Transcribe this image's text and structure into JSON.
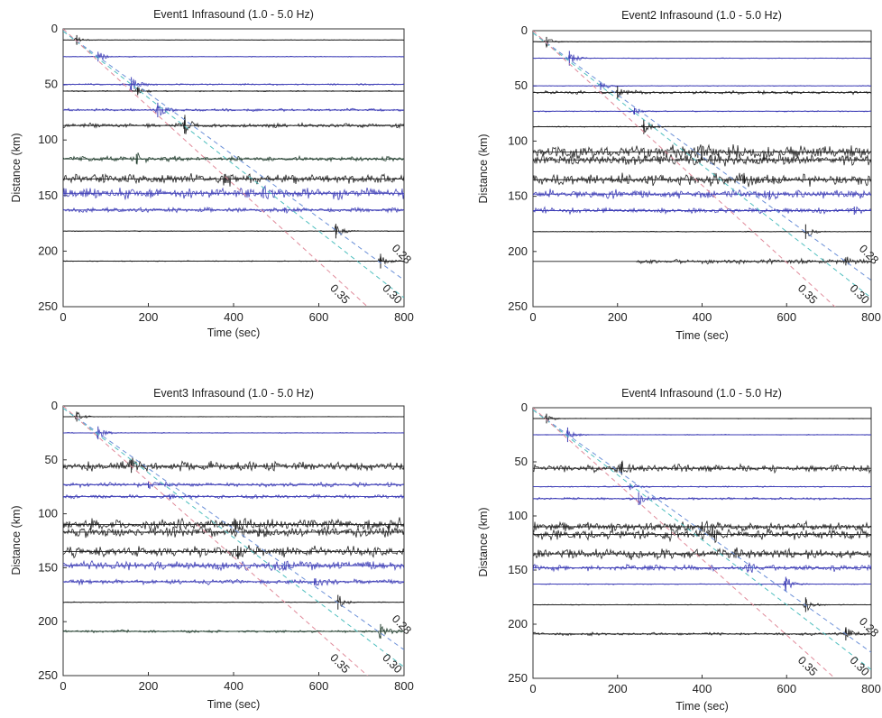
{
  "chart_data": [
    {
      "type": "line",
      "title": "Event1  Infrasound (1.0 - 5.0 Hz)",
      "xlabel": "Time (sec)",
      "ylabel": "Distance (km)",
      "xlim": [
        0,
        800
      ],
      "ylim": [
        0,
        250
      ],
      "y_inverted": true,
      "xticks": [
        0,
        200,
        400,
        600,
        800
      ],
      "yticks": [
        0,
        50,
        100,
        150,
        200,
        250
      ],
      "velocity_lines": [
        {
          "label": "0.28",
          "color": "#6a8fd8"
        },
        {
          "label": "0.30",
          "color": "#4fbfbf"
        },
        {
          "label": "0.35",
          "color": "#e08a9a"
        }
      ],
      "traces": [
        {
          "distance": 10,
          "color": "#1a1a1a",
          "noise": 0.2,
          "arrival": 32,
          "amp": 6
        },
        {
          "distance": 25,
          "color": "#3b3bb5",
          "noise": 0.3,
          "arrival": 82,
          "amp": 6
        },
        {
          "distance": 50,
          "color": "#3b3bb5",
          "noise": 0.6,
          "arrival": 160,
          "amp": 9
        },
        {
          "distance": 56,
          "color": "#1a1a1a",
          "noise": 0.4,
          "arrival": 175,
          "amp": 5
        },
        {
          "distance": 73,
          "color": "#3b3bb5",
          "noise": 1.0,
          "arrival": 222,
          "amp": 9
        },
        {
          "distance": 87,
          "color": "#1a1a1a",
          "noise": 1.6,
          "arrival": 285,
          "amp": 10
        },
        {
          "distance": 117,
          "color": "#1d3a2a",
          "noise": 1.8,
          "arrival": 172,
          "amp": 6
        },
        {
          "distance": 135,
          "color": "#1a1a1a",
          "noise": 3.6,
          "arrival": 380,
          "amp": 5
        },
        {
          "distance": 148,
          "color": "#3b3bb5",
          "noise": 3.8,
          "arrival": 470,
          "amp": 6
        },
        {
          "distance": 163,
          "color": "#3b3bb5",
          "noise": 1.6,
          "arrival": 520,
          "amp": 3
        },
        {
          "distance": 182,
          "color": "#1a1a1a",
          "noise": 0.3,
          "arrival": 640,
          "amp": 9
        },
        {
          "distance": 209,
          "color": "#1a1a1a",
          "noise": 0.3,
          "arrival": 745,
          "amp": 9
        }
      ]
    },
    {
      "type": "line",
      "title": "Event2  Infrasound (1.0 - 5.0 Hz)",
      "xlabel": "Time (sec)",
      "ylabel": "Distance (km)",
      "xlim": [
        0,
        800
      ],
      "ylim": [
        0,
        250
      ],
      "y_inverted": true,
      "xticks": [
        0,
        200,
        400,
        600,
        800
      ],
      "yticks": [
        0,
        50,
        100,
        150,
        200,
        250
      ],
      "velocity_lines": [
        {
          "label": "0.28",
          "color": "#6a8fd8"
        },
        {
          "label": "0.30",
          "color": "#4fbfbf"
        },
        {
          "label": "0.35",
          "color": "#e08a9a"
        }
      ],
      "traces": [
        {
          "distance": 10,
          "color": "#1a1a1a",
          "noise": 0.2,
          "arrival": 32,
          "amp": 6
        },
        {
          "distance": 25,
          "color": "#3b3bb5",
          "noise": 0.3,
          "arrival": 86,
          "amp": 9
        },
        {
          "distance": 50,
          "color": "#3b3bb5",
          "noise": 0.3,
          "arrival": 160,
          "amp": 5
        },
        {
          "distance": 56,
          "color": "#1a1a1a",
          "noise": 1.2,
          "arrival": 200,
          "amp": 8
        },
        {
          "distance": 73,
          "color": "#3b3bb5",
          "noise": 0.4,
          "arrival": 240,
          "amp": 4
        },
        {
          "distance": 87,
          "color": "#1a1a1a",
          "noise": 0.4,
          "arrival": 262,
          "amp": 9
        },
        {
          "distance": 110,
          "color": "#1a1a1a",
          "noise": 5.0,
          "arrival": 390,
          "amp": 7
        },
        {
          "distance": 117,
          "color": "#1a1a1a",
          "noise": 4.0,
          "arrival": 420,
          "amp": 5
        },
        {
          "distance": 135,
          "color": "#1a1a1a",
          "noise": 4.2,
          "arrival": 500,
          "amp": 5
        },
        {
          "distance": 148,
          "color": "#3b3bb5",
          "noise": 3.0,
          "arrival": 560,
          "amp": 4
        },
        {
          "distance": 163,
          "color": "#3b3bb5",
          "noise": 2.0,
          "arrival": 760,
          "amp": 5
        },
        {
          "distance": 182,
          "color": "#1a1a1a",
          "noise": 0.3,
          "arrival": 645,
          "amp": 9
        },
        {
          "distance": 209,
          "color": "#1a1a1a",
          "noise": 1.6,
          "arrival": 740,
          "amp": 5,
          "start": 245
        }
      ]
    },
    {
      "type": "line",
      "title": "Event3  Infrasound (1.0 - 5.0 Hz)",
      "xlabel": "Time (sec)",
      "ylabel": "Distance (km)",
      "xlim": [
        0,
        800
      ],
      "ylim": [
        0,
        250
      ],
      "y_inverted": true,
      "xticks": [
        0,
        200,
        400,
        600,
        800
      ],
      "yticks": [
        0,
        50,
        100,
        150,
        200,
        250
      ],
      "velocity_lines": [
        {
          "label": "0.28",
          "color": "#6a8fd8"
        },
        {
          "label": "0.30",
          "color": "#4fbfbf"
        },
        {
          "label": "0.35",
          "color": "#e08a9a"
        }
      ],
      "traces": [
        {
          "distance": 10,
          "color": "#1a1a1a",
          "noise": 0.2,
          "arrival": 32,
          "amp": 6
        },
        {
          "distance": 25,
          "color": "#3b3bb5",
          "noise": 0.3,
          "arrival": 82,
          "amp": 8
        },
        {
          "distance": 56,
          "color": "#1a1a1a",
          "noise": 3.2,
          "arrival": 160,
          "amp": 8
        },
        {
          "distance": 73,
          "color": "#3b3bb5",
          "noise": 1.6,
          "arrival": 200,
          "amp": 4
        },
        {
          "distance": 84,
          "color": "#3b3bb5",
          "noise": 1.4,
          "arrival": 250,
          "amp": 3
        },
        {
          "distance": 110,
          "color": "#1a1a1a",
          "noise": 4.0,
          "arrival": 405,
          "amp": 6
        },
        {
          "distance": 117,
          "color": "#1a1a1a",
          "noise": 3.6,
          "arrival": 460,
          "amp": 5
        },
        {
          "distance": 135,
          "color": "#1a1a1a",
          "noise": 3.8,
          "arrival": 410,
          "amp": 7
        },
        {
          "distance": 148,
          "color": "#3b3bb5",
          "noise": 3.4,
          "arrival": 520,
          "amp": 5
        },
        {
          "distance": 163,
          "color": "#3b3bb5",
          "noise": 1.8,
          "arrival": 590,
          "amp": 4
        },
        {
          "distance": 182,
          "color": "#1a1a1a",
          "noise": 0.3,
          "arrival": 645,
          "amp": 9
        },
        {
          "distance": 209,
          "color": "#1d3a2a",
          "noise": 0.9,
          "arrival": 745,
          "amp": 9
        }
      ]
    },
    {
      "type": "line",
      "title": "Event4  Infrasound (1.0 - 5.0 Hz)",
      "xlabel": "Time (sec)",
      "ylabel": "Distance (km)",
      "xlim": [
        0,
        800
      ],
      "ylim": [
        0,
        250
      ],
      "y_inverted": true,
      "xticks": [
        0,
        200,
        400,
        600,
        800
      ],
      "yticks": [
        0,
        50,
        100,
        150,
        200,
        250
      ],
      "velocity_lines": [
        {
          "label": "0.28",
          "color": "#6a8fd8"
        },
        {
          "label": "0.30",
          "color": "#4fbfbf"
        },
        {
          "label": "0.35",
          "color": "#e08a9a"
        }
      ],
      "traces": [
        {
          "distance": 10,
          "color": "#1a1a1a",
          "noise": 0.2,
          "arrival": 32,
          "amp": 6
        },
        {
          "distance": 25,
          "color": "#3b3bb5",
          "noise": 0.3,
          "arrival": 82,
          "amp": 9
        },
        {
          "distance": 56,
          "color": "#1a1a1a",
          "noise": 2.6,
          "arrival": 210,
          "amp": 8
        },
        {
          "distance": 73,
          "color": "#3b3bb5",
          "noise": 0.5,
          "arrival": 230,
          "amp": 4
        },
        {
          "distance": 84,
          "color": "#3b3bb5",
          "noise": 0.8,
          "arrival": 250,
          "amp": 8
        },
        {
          "distance": 110,
          "color": "#1a1a1a",
          "noise": 3.2,
          "arrival": 400,
          "amp": 6
        },
        {
          "distance": 117,
          "color": "#1a1a1a",
          "noise": 4.0,
          "arrival": 430,
          "amp": 5
        },
        {
          "distance": 135,
          "color": "#1a1a1a",
          "noise": 3.6,
          "arrival": 480,
          "amp": 5
        },
        {
          "distance": 148,
          "color": "#3b3bb5",
          "noise": 2.2,
          "arrival": 510,
          "amp": 4
        },
        {
          "distance": 163,
          "color": "#3b3bb5",
          "noise": 0.4,
          "arrival": 598,
          "amp": 9
        },
        {
          "distance": 182,
          "color": "#1a1a1a",
          "noise": 0.3,
          "arrival": 645,
          "amp": 9
        },
        {
          "distance": 209,
          "color": "#1a1a1a",
          "noise": 1.0,
          "arrival": 740,
          "amp": 8
        }
      ]
    }
  ]
}
